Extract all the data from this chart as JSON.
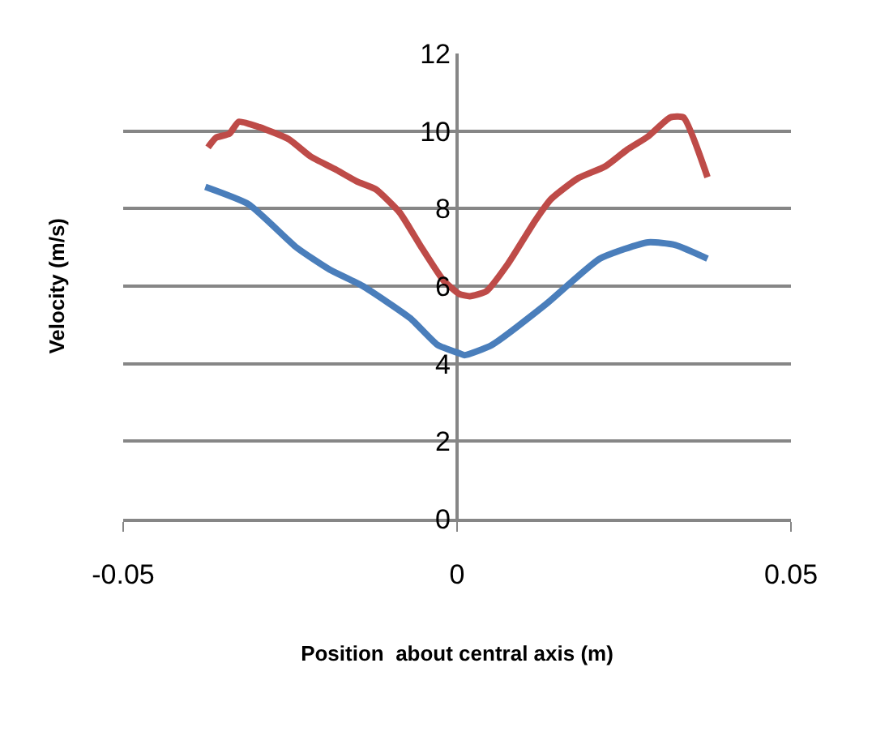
{
  "chart_data": {
    "type": "line",
    "xlabel": "Position  about central axis (m)",
    "ylabel": "Velocity (m/s)",
    "xlim": [
      -0.05,
      0.05
    ],
    "xticks": [
      -0.05,
      0,
      0.05
    ],
    "ylim": [
      0,
      12
    ],
    "yticks": [
      0,
      2,
      4,
      6,
      8,
      10,
      12
    ],
    "grid": "y",
    "marker": "none",
    "line_style": "solid",
    "series": [
      {
        "color": "#4a7ebb",
        "x": [
          -0.0377,
          -0.0312,
          -0.024,
          -0.0191,
          -0.0142,
          -0.007,
          -0.0029,
          0.0003,
          0.0011,
          0.0052,
          0.0133,
          0.0214,
          0.0286,
          0.0327,
          0.0375
        ],
        "values": [
          8.56,
          8.11,
          6.99,
          6.43,
          6.01,
          5.17,
          4.48,
          4.27,
          4.22,
          4.48,
          5.53,
          6.71,
          7.13,
          7.06,
          6.71
        ]
      },
      {
        "color": "#be4b48",
        "x": [
          -0.0373,
          -0.0361,
          -0.0341,
          -0.0327,
          -0.0296,
          -0.0252,
          -0.0219,
          -0.0183,
          -0.015,
          -0.0122,
          -0.0086,
          -0.0053,
          -0.0021,
          0.0003,
          0.0019,
          0.0044,
          0.0076,
          0.0117,
          0.0141,
          0.0181,
          0.0222,
          0.0254,
          0.0286,
          0.0319,
          0.0339,
          0.0375
        ],
        "values": [
          9.58,
          9.83,
          9.93,
          10.24,
          10.1,
          9.79,
          9.34,
          9.02,
          8.7,
          8.5,
          7.9,
          6.99,
          6.16,
          5.8,
          5.74,
          5.87,
          6.57,
          7.69,
          8.25,
          8.78,
          9.09,
          9.51,
          9.86,
          10.35,
          10.35,
          8.81
        ]
      }
    ]
  }
}
